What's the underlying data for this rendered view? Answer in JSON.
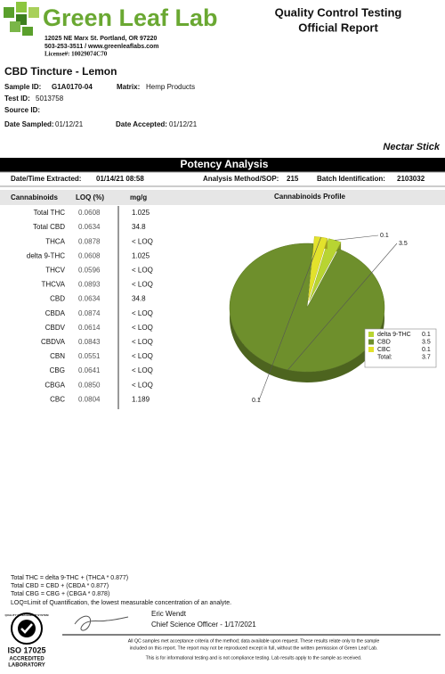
{
  "header": {
    "lab_name": "Green Leaf Lab",
    "address": "12025 NE Marx St. Portland, OR 97220",
    "contact": "503-253-3511 / www.greenleaflabs.com",
    "license": "License#: 10029074C70",
    "report_title": [
      "Quality Control Testing",
      "Official Report"
    ]
  },
  "sample": {
    "product": "CBD Tincture - Lemon",
    "sample_id": {
      "label": "Sample ID:",
      "value": "G1A0170-04"
    },
    "matrix": {
      "label": "Matrix:",
      "value": "Hemp Products"
    },
    "test_id": {
      "label": "Test ID:",
      "value": "5013758"
    },
    "source_id": {
      "label": "Source ID:"
    },
    "date_sampled": {
      "label": "Date Sampled:",
      "value": "01/12/21"
    },
    "date_accepted": {
      "label": "Date Accepted:",
      "value": "01/12/21"
    },
    "client_product": "Nectar Stick"
  },
  "section": {
    "title": "Potency Analysis",
    "extracted": {
      "label": "Date/Time Extracted:",
      "value": "01/14/21  08:58"
    },
    "method": {
      "label": "Analysis Method/SOP:",
      "value": "215"
    },
    "batch": {
      "label": "Batch Identification:",
      "value": "2103032"
    }
  },
  "table": {
    "columns": [
      "Cannabinoids",
      "LOQ (%)",
      "mg/g"
    ],
    "rows": [
      [
        "Total THC",
        "0.0608",
        "1.025"
      ],
      [
        "Total CBD",
        "0.0634",
        "34.8"
      ],
      [
        "THCA",
        "0.0878",
        "< LOQ"
      ],
      [
        "delta 9-THC",
        "0.0608",
        "1.025"
      ],
      [
        "THCV",
        "0.0596",
        "< LOQ"
      ],
      [
        "THCVA",
        "0.0893",
        "< LOQ"
      ],
      [
        "CBD",
        "0.0634",
        "34.8"
      ],
      [
        "CBDA",
        "0.0874",
        "< LOQ"
      ],
      [
        "CBDV",
        "0.0614",
        "< LOQ"
      ],
      [
        "CBDVA",
        "0.0843",
        "< LOQ"
      ],
      [
        "CBN",
        "0.0551",
        "< LOQ"
      ],
      [
        "CBG",
        "0.0641",
        "< LOQ"
      ],
      [
        "CBGA",
        "0.0850",
        "< LOQ"
      ],
      [
        "CBC",
        "0.0804",
        "1.189"
      ]
    ]
  },
  "chart_data": {
    "type": "pie",
    "title": "Cannabinoids Profile",
    "categories": [
      "delta 9-THC",
      "CBD",
      "CBC"
    ],
    "values": [
      0.1,
      3.5,
      0.1
    ],
    "colors": [
      "#b8d432",
      "#6e8f2c",
      "#e3e22c"
    ],
    "total_label": "Total:",
    "total": 3.7
  },
  "footer": {
    "formulas": [
      "Total THC =  delta 9-THC + (THCA * 0.877)",
      "Total CBD = CBD + (CBDA * 0.877)",
      "Total CBG = CBG + (CBGA * 0.878)",
      "LOQ=Limit of Quantification, the lowest measurable concentration of an analyte."
    ],
    "signer": "Eric Wendt",
    "signer_title": "Chief Science Officer - 1/17/2021",
    "disclaimer": [
      "All QC samples met acceptance criteria of the method; data available upon request. These results relate only to the sample",
      "included on this report. The report may not be reproduced except in full, without the written permission of Green Leaf Lab.",
      "This is for informational testing and is not compliance testing. Lab results apply to the sample as received."
    ],
    "badge": {
      "top": "QUALITY MANAGEMENT SYSTEM",
      "lines": [
        "ISO 17025",
        "ACCREDITED",
        "LABORATORY"
      ]
    }
  }
}
